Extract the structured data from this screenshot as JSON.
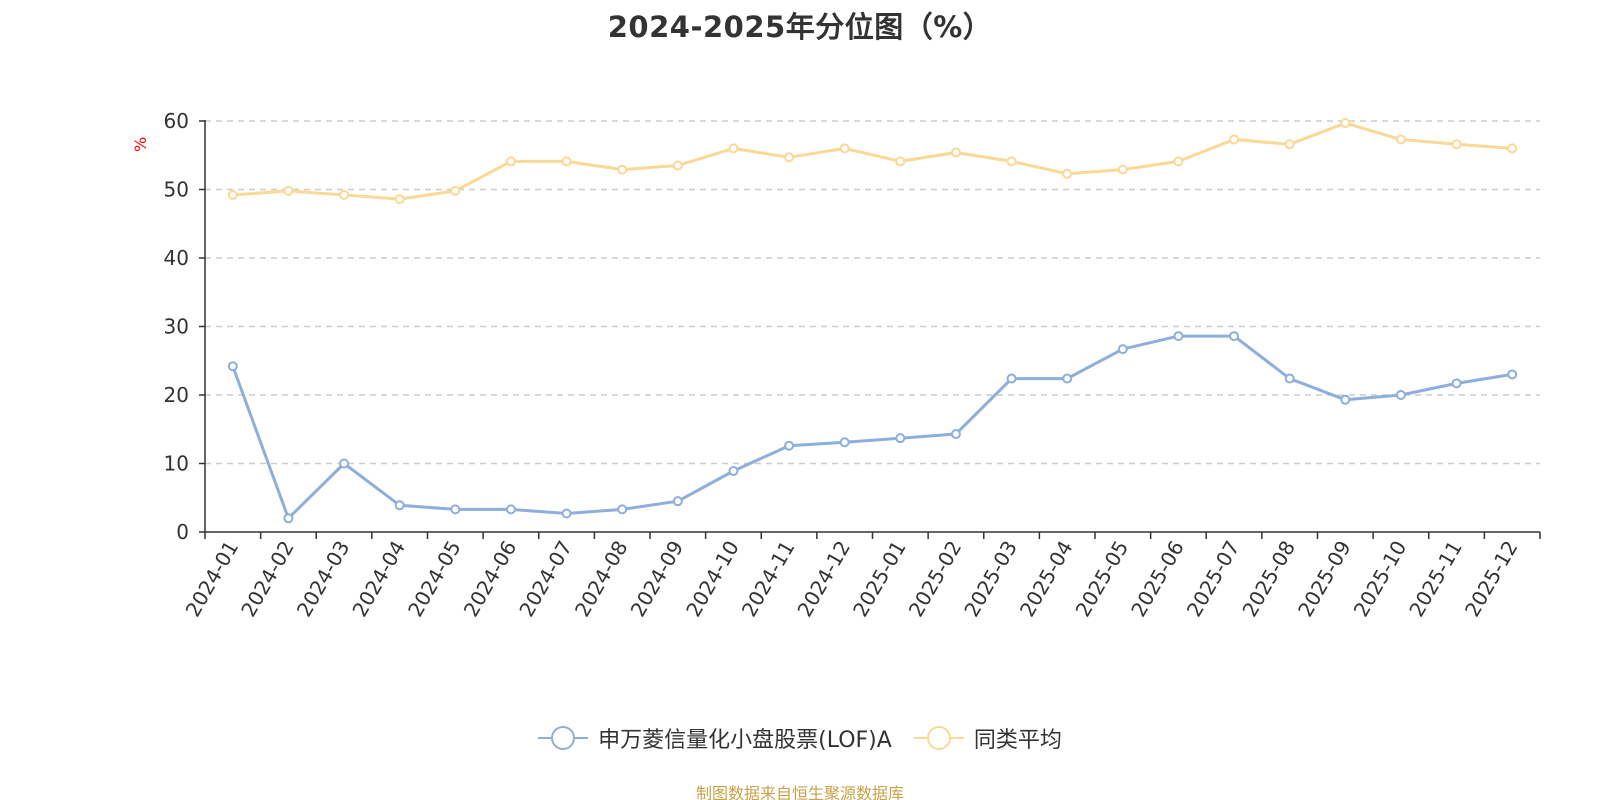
{
  "chart_data": {
    "type": "line",
    "title": "2024-2025年分位图（%）",
    "ylabel": "%",
    "xlabel": "",
    "ylim": [
      0,
      60
    ],
    "yticks": [
      0,
      10,
      20,
      30,
      40,
      50,
      60
    ],
    "grid": true,
    "legend_position": "bottom",
    "categories": [
      "2024-01",
      "2024-02",
      "2024-03",
      "2024-04",
      "2024-05",
      "2024-06",
      "2024-07",
      "2024-08",
      "2024-09",
      "2024-10",
      "2024-11",
      "2024-12",
      "2025-01",
      "2025-02",
      "2025-03",
      "2025-04",
      "2025-05",
      "2025-06",
      "2025-07",
      "2025-08",
      "2025-09",
      "2025-10",
      "2025-11",
      "2025-12"
    ],
    "series": [
      {
        "name": "申万菱信量化小盘股票(LOF)A",
        "color": "#8eaedb",
        "values": [
          24.2,
          2.0,
          10.0,
          3.9,
          3.3,
          3.3,
          2.7,
          3.3,
          4.5,
          8.9,
          12.6,
          13.1,
          13.7,
          14.3,
          22.4,
          22.4,
          26.7,
          28.6,
          28.6,
          22.4,
          19.3,
          20.0,
          21.7,
          23.0
        ]
      },
      {
        "name": "同类平均",
        "color": "#fbd896",
        "values": [
          49.2,
          49.8,
          49.2,
          48.6,
          49.8,
          54.1,
          54.1,
          52.9,
          53.5,
          56.0,
          54.7,
          56.0,
          54.1,
          55.4,
          54.1,
          52.3,
          52.9,
          54.1,
          57.3,
          56.6,
          59.7,
          57.3,
          56.6,
          56.0
        ]
      }
    ]
  },
  "footer": "制图数据来自恒生聚源数据库"
}
